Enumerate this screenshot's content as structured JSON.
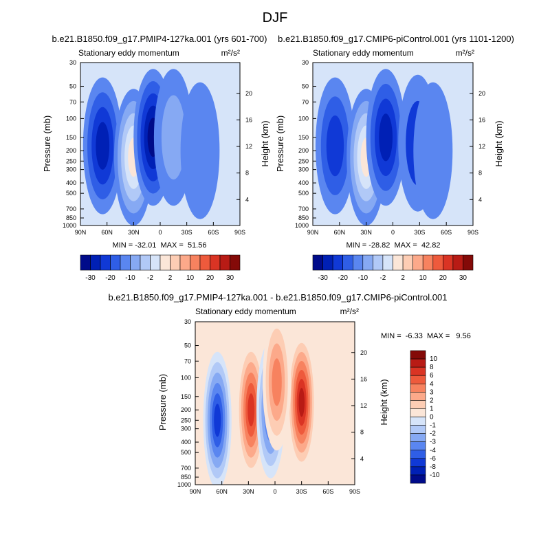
{
  "page_title": "DJF",
  "colors": {
    "palette_full": [
      "#000b8a",
      "#0020b5",
      "#1039d6",
      "#2f5ee6",
      "#5a86f0",
      "#86a9f3",
      "#b1c9f7",
      "#d6e4f9",
      "#fbe6d8",
      "#fdcdb4",
      "#fca98a",
      "#f7825f",
      "#ee5a3c",
      "#da3424",
      "#b81b15",
      "#840a08"
    ],
    "palette_diff": [
      "#000b8a",
      "#0020b5",
      "#1039d6",
      "#2f5ee6",
      "#5a86f0",
      "#86a9f3",
      "#b1c9f7",
      "#d6e4f9",
      "#fbe6d8",
      "#fdcdb4",
      "#fca98a",
      "#f7825f",
      "#ee5a3c",
      "#da3424",
      "#b81b15",
      "#840a08"
    ]
  },
  "chart_data": [
    {
      "type": "heatmap",
      "title": "b.e21.B1850.f09_g17.PMIP4-127ka.001 (yrs 601-700)",
      "subtitle": "Stationary eddy momentum",
      "units_label": "m²/s²",
      "xlabel": "",
      "ylabel": "Pressure (mb)",
      "ylabel_right": "Height (km)",
      "x_ticks": [
        "90N",
        "60N",
        "30N",
        "0",
        "30S",
        "60S",
        "90S"
      ],
      "y_ticks": [
        "30",
        "50",
        "70",
        "100",
        "150",
        "200",
        "250",
        "300",
        "400",
        "500",
        "700",
        "850",
        "1000"
      ],
      "y_right_ticks": [
        "20",
        "16",
        "12",
        "8",
        "4"
      ],
      "min": -32.01,
      "max": 51.56,
      "stats_text": "MIN = -32.01  MAX =  51.56",
      "colorbar_labels": [
        "-30",
        "-20",
        "-10",
        "-2",
        "2",
        "10",
        "20",
        "30"
      ],
      "features": [
        {
          "lat": 65,
          "p": 180,
          "value": -22
        },
        {
          "lat": 30,
          "p": 230,
          "value": 51.56
        },
        {
          "lat": 8,
          "p": 150,
          "value": -32.01
        },
        {
          "lat": -15,
          "p": 150,
          "value": 6
        },
        {
          "lat": -45,
          "p": 200,
          "value": 2
        }
      ]
    },
    {
      "type": "heatmap",
      "title": "b.e21.B1850.f09_g17.CMIP6-piControl.001 (yrs 1101-1200)",
      "subtitle": "Stationary eddy momentum",
      "units_label": "m²/s²",
      "xlabel": "",
      "ylabel": "Pressure (mb)",
      "ylabel_right": "Height (km)",
      "x_ticks": [
        "90N",
        "60N",
        "30N",
        "0",
        "30S",
        "60S",
        "90S"
      ],
      "y_ticks": [
        "30",
        "50",
        "70",
        "100",
        "150",
        "200",
        "250",
        "300",
        "400",
        "500",
        "700",
        "850",
        "1000"
      ],
      "y_right_ticks": [
        "20",
        "16",
        "12",
        "8",
        "4"
      ],
      "min": -28.82,
      "max": 42.82,
      "stats_text": "MIN = -28.82  MAX =  42.82",
      "colorbar_labels": [
        "-30",
        "-20",
        "-10",
        "-2",
        "2",
        "10",
        "20",
        "30"
      ],
      "features": [
        {
          "lat": 65,
          "p": 180,
          "value": -14
        },
        {
          "lat": 30,
          "p": 230,
          "value": 42.82
        },
        {
          "lat": 8,
          "p": 150,
          "value": -28.82
        },
        {
          "lat": -28,
          "p": 170,
          "value": -10
        },
        {
          "lat": -45,
          "p": 200,
          "value": 2
        }
      ]
    },
    {
      "type": "heatmap",
      "title": "b.e21.B1850.f09_g17.PMIP4-127ka.001 - b.e21.B1850.f09_g17.CMIP6-piControl.001",
      "subtitle": "Stationary eddy momentum",
      "units_label": "m²/s²",
      "xlabel": "",
      "ylabel": "Pressure (mb)",
      "ylabel_right": "Height (km)",
      "x_ticks": [
        "90N",
        "60N",
        "30N",
        "0",
        "30S",
        "60S",
        "90S"
      ],
      "y_ticks": [
        "30",
        "50",
        "70",
        "100",
        "150",
        "200",
        "250",
        "300",
        "400",
        "500",
        "700",
        "850",
        "1000"
      ],
      "y_right_ticks": [
        "20",
        "16",
        "12",
        "8",
        "4"
      ],
      "min": -6.33,
      "max": 9.56,
      "stats_text": "MIN =  -6.33  MAX =   9.56",
      "colorbar_labels": [
        "10",
        "8",
        "6",
        "4",
        "3",
        "2",
        "1",
        "0",
        "-1",
        "-2",
        "-3",
        "-4",
        "-6",
        "-8",
        "-10"
      ],
      "features": [
        {
          "lat": 65,
          "p": 250,
          "value": -6.33
        },
        {
          "lat": 27,
          "p": 200,
          "value": 8
        },
        {
          "lat": 5,
          "p": 200,
          "value": -5
        },
        {
          "lat": -30,
          "p": 170,
          "value": 9.56
        },
        {
          "lat": -2,
          "p": 110,
          "value": 4
        }
      ]
    }
  ]
}
